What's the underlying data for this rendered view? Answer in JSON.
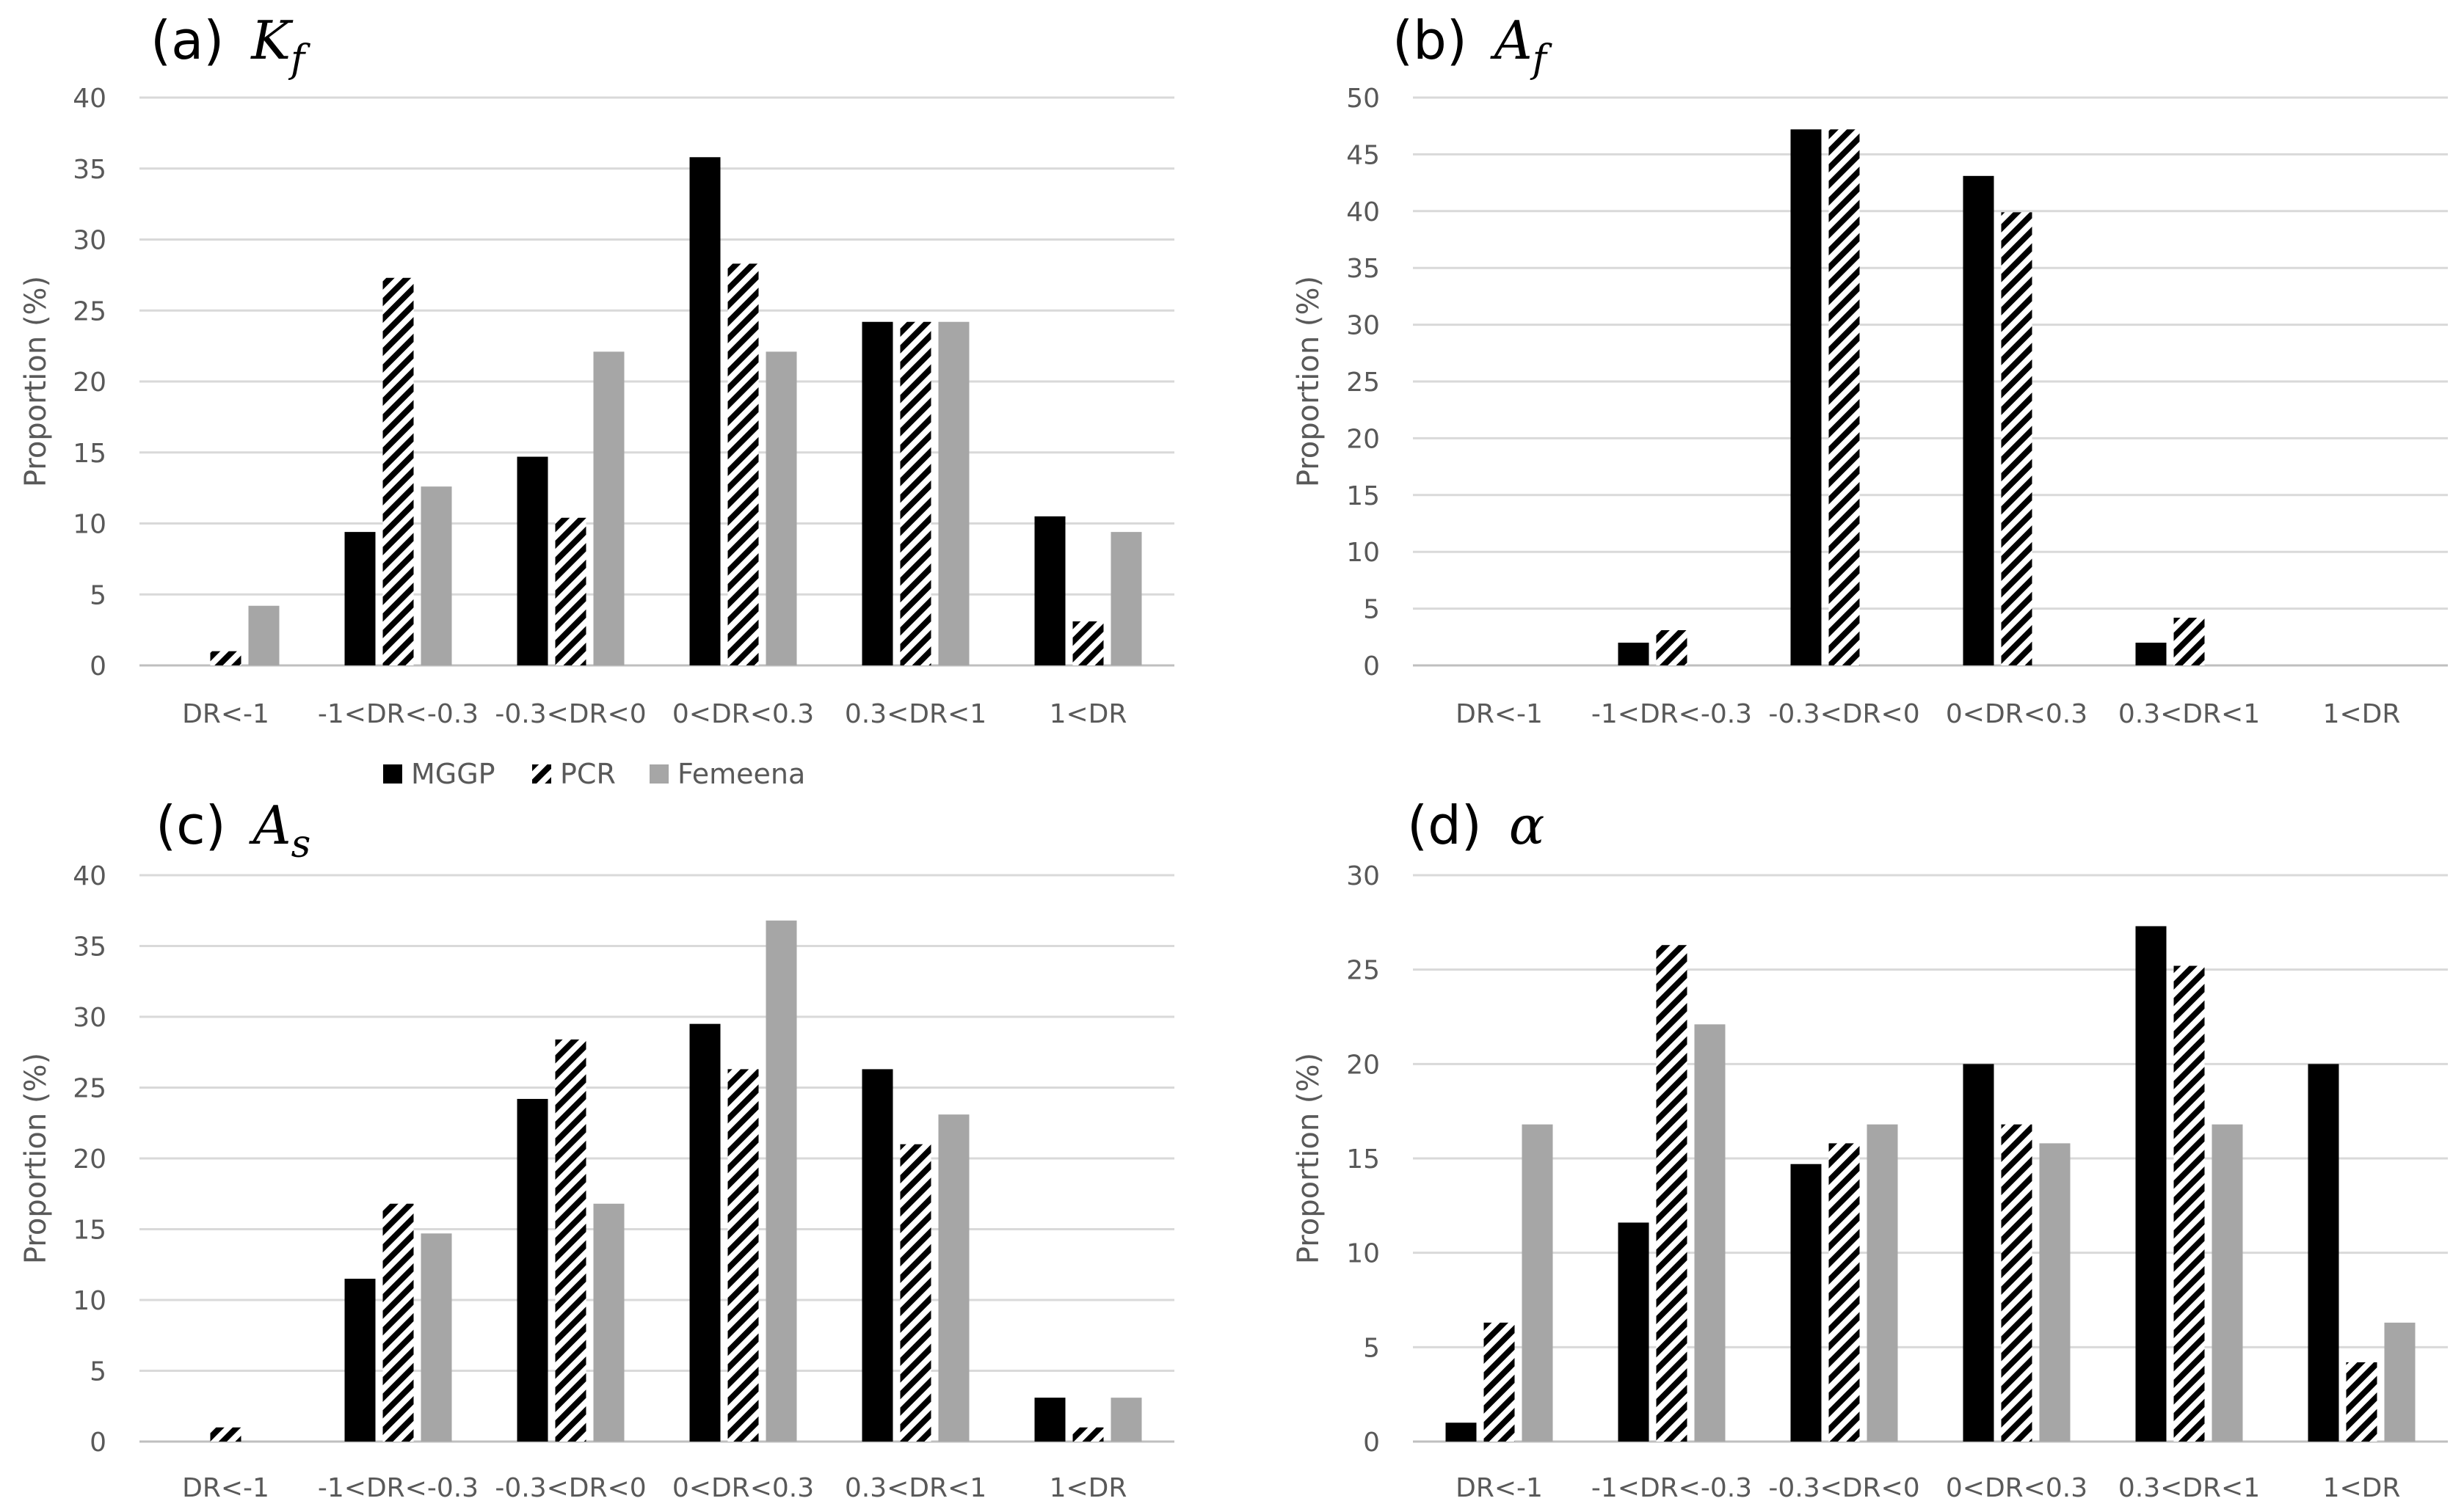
{
  "legend": [
    "MGGP",
    "PCR",
    "Femeena"
  ],
  "colors": {
    "MGGP": "#000000",
    "PCR_stripe": "#000000",
    "Femeena": "#a6a6a6"
  },
  "chart_data": [
    {
      "type": "bar",
      "label": "(a)",
      "symbol": "K",
      "subscript": "f",
      "ylabel": "Proportion (%)",
      "ylim": [
        0,
        40
      ],
      "ystep": 5,
      "categories": [
        "DR<-1",
        "-1<DR<-0.3",
        "-0.3<DR<0",
        "0<DR<0.3",
        "0.3<DR<1",
        "1<DR"
      ],
      "series": [
        {
          "name": "MGGP",
          "values": [
            0,
            9.4,
            14.7,
            35.8,
            24.2,
            10.5
          ]
        },
        {
          "name": "PCR",
          "values": [
            1.0,
            27.3,
            10.4,
            28.3,
            24.2,
            3.1
          ]
        },
        {
          "name": "Femeena",
          "values": [
            4.2,
            12.6,
            22.1,
            22.1,
            24.2,
            9.4
          ]
        }
      ]
    },
    {
      "type": "bar",
      "label": "(b)",
      "symbol": "A",
      "subscript": "f",
      "ylabel": "Proportion (%)",
      "ylim": [
        0,
        50
      ],
      "ystep": 5,
      "categories": [
        "DR<-1",
        "-1<DR<-0.3",
        "-0.3<DR<0",
        "0<DR<0.3",
        "0.3<DR<1",
        "1<DR"
      ],
      "series": [
        {
          "name": "MGGP",
          "values": [
            0,
            2.0,
            47.2,
            43.1,
            2.0,
            0
          ]
        },
        {
          "name": "PCR",
          "values": [
            0,
            3.1,
            47.2,
            39.9,
            4.2,
            0
          ]
        },
        {
          "name": "Femeena",
          "values": [
            0,
            0,
            0,
            0,
            0,
            0
          ]
        }
      ]
    },
    {
      "type": "bar",
      "label": "(c)",
      "symbol": "A",
      "subscript": "s",
      "ylabel": "Proportion (%)",
      "ylim": [
        0,
        40
      ],
      "ystep": 5,
      "categories": [
        "DR<-1",
        "-1<DR<-0.3",
        "-0.3<DR<0",
        "0<DR<0.3",
        "0.3<DR<1",
        "1<DR"
      ],
      "series": [
        {
          "name": "MGGP",
          "values": [
            0,
            11.5,
            24.2,
            29.5,
            26.3,
            3.1
          ]
        },
        {
          "name": "PCR",
          "values": [
            1.0,
            16.8,
            28.4,
            26.3,
            21.0,
            1.0
          ]
        },
        {
          "name": "Femeena",
          "values": [
            0,
            14.7,
            16.8,
            36.8,
            23.1,
            3.1
          ]
        }
      ]
    },
    {
      "type": "bar",
      "label": "(d)",
      "symbol": "α",
      "subscript": "",
      "ylabel": "Proportion (%)",
      "ylim": [
        0,
        30
      ],
      "ystep": 5,
      "categories": [
        "DR<-1",
        "-1<DR<-0.3",
        "-0.3<DR<0",
        "0<DR<0.3",
        "0.3<DR<1",
        "1<DR"
      ],
      "series": [
        {
          "name": "MGGP",
          "values": [
            1.0,
            11.6,
            14.7,
            20.0,
            27.3,
            20.0
          ]
        },
        {
          "name": "PCR",
          "values": [
            6.3,
            26.3,
            15.8,
            16.8,
            25.2,
            4.2
          ]
        },
        {
          "name": "Femeena",
          "values": [
            16.8,
            22.1,
            16.8,
            15.8,
            16.8,
            6.3
          ]
        }
      ]
    }
  ]
}
